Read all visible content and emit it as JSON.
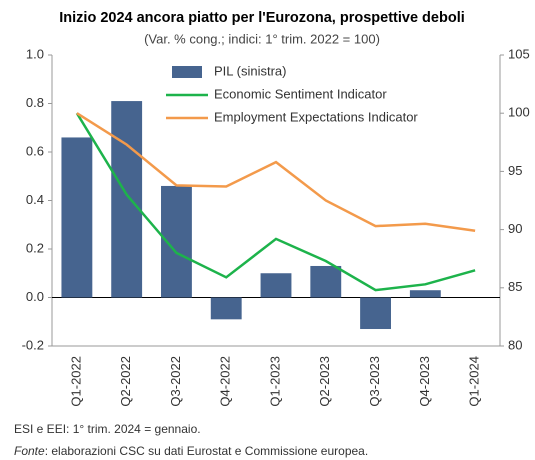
{
  "chart_data": {
    "type": "bar",
    "title": "Inizio 2024 ancora piatto per l'Eurozona, prospettive deboli",
    "subtitle": "(Var. % cong.; indici: 1° trim. 2022 = 100)",
    "categories": [
      "Q1-2022",
      "Q2-2022",
      "Q3-2022",
      "Q4-2022",
      "Q1-2023",
      "Q2-2023",
      "Q3-2023",
      "Q4-2023",
      "Q1-2024"
    ],
    "series": [
      {
        "name": "PIL (sinistra)",
        "type": "bar",
        "axis": "y",
        "color": "#46648f",
        "values": [
          0.66,
          0.81,
          0.46,
          -0.09,
          0.1,
          0.13,
          -0.13,
          0.03,
          null
        ]
      },
      {
        "name": "Economic Sentiment Indicator",
        "type": "line",
        "axis": "y2",
        "color": "#1db34b",
        "values": [
          100,
          93.0,
          88.0,
          85.9,
          89.2,
          87.3,
          84.8,
          85.3,
          86.5
        ]
      },
      {
        "name": "Employment Expectations Indicator",
        "type": "line",
        "axis": "y2",
        "color": "#f39a4b",
        "values": [
          100,
          97.3,
          93.8,
          93.7,
          95.8,
          92.5,
          90.3,
          90.5,
          89.9
        ]
      }
    ],
    "ylim": [
      -0.2,
      1.0
    ],
    "yticks": [
      {
        "value": 1.0,
        "label": "1.0"
      },
      0.8,
      0.6,
      0.4,
      0.2,
      {
        "value": 0,
        "label": "0.0"
      },
      -0.2
    ],
    "y2lim": [
      80,
      105
    ],
    "y2ticks": [
      105,
      100,
      95,
      90,
      85,
      80
    ],
    "legend": "top"
  },
  "footnote": "ESI e EEI: 1° trim. 2024 = gennaio.",
  "source_label": "Fonte",
  "source_text": ": elaborazioni CSC su dati Eurostat e Commissione europea."
}
